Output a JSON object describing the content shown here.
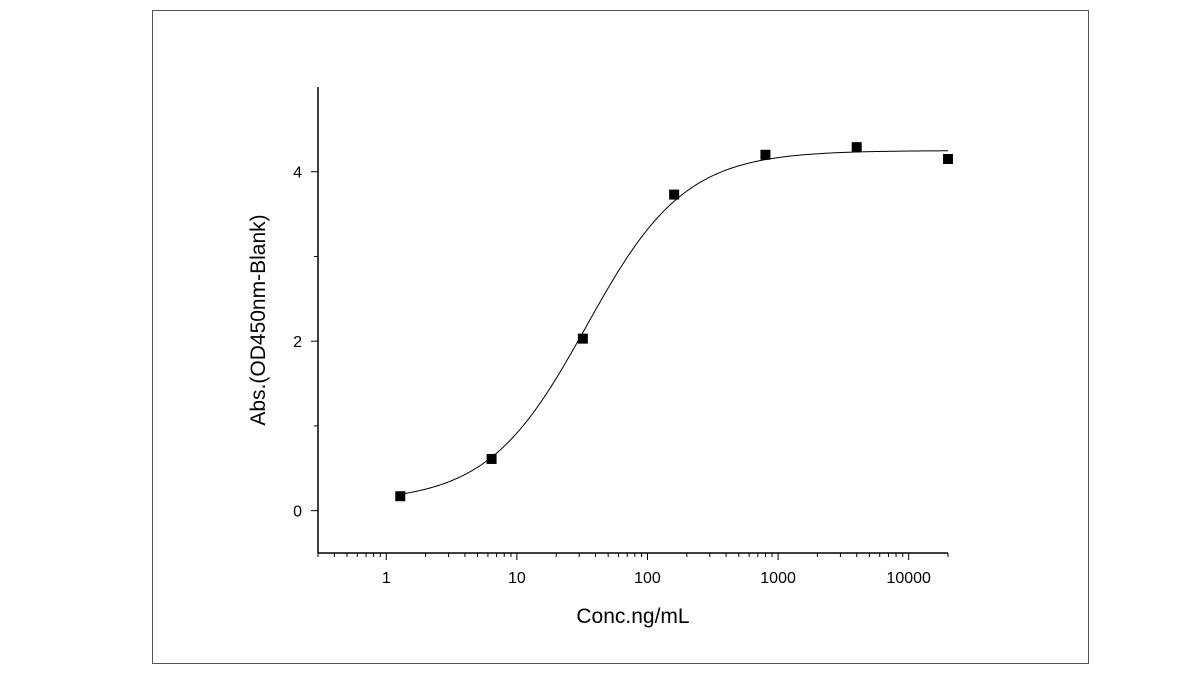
{
  "chart_data": {
    "type": "scatter",
    "title": "",
    "xlabel": "Conc.ng/mL",
    "ylabel": "Abs.(OD450nm-Blank)",
    "x_scale": "log",
    "xlim": [
      0.3,
      20000
    ],
    "ylim": [
      -0.5,
      5
    ],
    "x_ticks": [
      1,
      10,
      100,
      1000,
      10000
    ],
    "x_tick_labels": [
      "1",
      "10",
      "100",
      "1000",
      "10000"
    ],
    "y_ticks": [
      0,
      2,
      4
    ],
    "y_tick_labels": [
      "0",
      "2",
      "4"
    ],
    "grid": false,
    "legend": "none",
    "colors": {
      "marker": "#000000",
      "curve": "#000000",
      "axis": "#000000",
      "frame": "#555555"
    },
    "series": [
      {
        "marker": "square",
        "x": [
          1.28,
          6.4,
          32,
          160,
          800,
          4000,
          20000
        ],
        "y": [
          0.17,
          0.61,
          2.03,
          3.73,
          4.2,
          4.29,
          4.15
        ]
      }
    ],
    "fit_curve": {
      "model": "4PL",
      "bottom": 0.1,
      "top": 4.25,
      "ec50": 34,
      "hill": 1.15,
      "x_range": [
        1.28,
        20000
      ]
    }
  }
}
